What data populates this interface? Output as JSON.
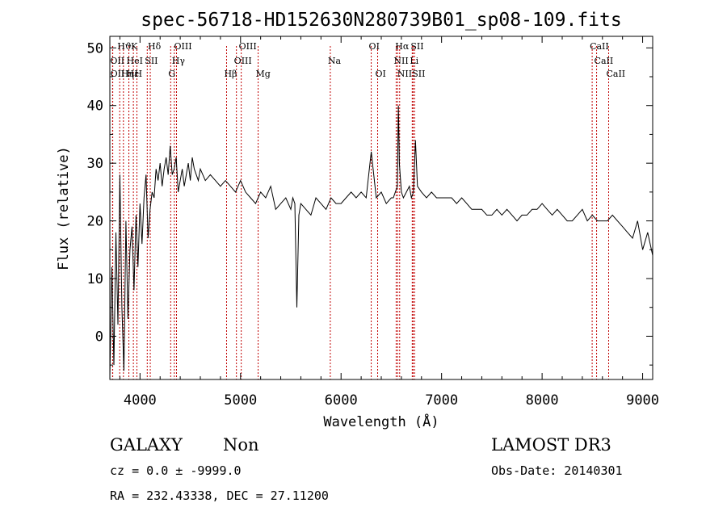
{
  "chart_data": {
    "type": "line",
    "title": "spec-56718-HD152630N280739B01_sp08-109.fits",
    "xlabel": "Wavelength (Å)",
    "ylabel": "Flux (relative)",
    "xlim": [
      3700,
      9100
    ],
    "ylim": [
      -7.5,
      52
    ],
    "xticks": [
      4000,
      5000,
      6000,
      7000,
      8000,
      9000
    ],
    "yticks": [
      0,
      10,
      20,
      30,
      40,
      50
    ],
    "grid": false,
    "line_color": "#000000",
    "marker_color": "#c00000",
    "spectral_lines": [
      {
        "name": "Hϑ",
        "wavelength": 3798,
        "row": 0
      },
      {
        "name": "OII",
        "wavelength": 3727,
        "row": 1
      },
      {
        "name": "OII",
        "wavelength": 3729,
        "row": 2
      },
      {
        "name": "Hε",
        "wavelength": 3889,
        "row": 2
      },
      {
        "name": "HeI",
        "wavelength": 3889,
        "row": 1
      },
      {
        "name": "Hη",
        "wavelength": 3835,
        "row": 2
      },
      {
        "name": "K",
        "wavelength": 3934,
        "row": 0
      },
      {
        "name": "H",
        "wavelength": 3969,
        "row": 2
      },
      {
        "name": "SII",
        "wavelength": 4072,
        "row": 1
      },
      {
        "name": "Hδ",
        "wavelength": 4102,
        "row": 0
      },
      {
        "name": "G",
        "wavelength": 4305,
        "row": 2
      },
      {
        "name": "OIII",
        "wavelength": 4363,
        "row": 0
      },
      {
        "name": "Hγ",
        "wavelength": 4341,
        "row": 1
      },
      {
        "name": "Hβ",
        "wavelength": 4861,
        "row": 2
      },
      {
        "name": "OIII",
        "wavelength": 4959,
        "row": 1
      },
      {
        "name": "OIII",
        "wavelength": 5007,
        "row": 0
      },
      {
        "name": "Mg",
        "wavelength": 5175,
        "row": 2
      },
      {
        "name": "Na",
        "wavelength": 5893,
        "row": 1
      },
      {
        "name": "OI",
        "wavelength": 6300,
        "row": 0
      },
      {
        "name": "OI",
        "wavelength": 6364,
        "row": 2
      },
      {
        "name": "NII",
        "wavelength": 6548,
        "row": 1
      },
      {
        "name": "NII",
        "wavelength": 6583,
        "row": 2
      },
      {
        "name": "Hα",
        "wavelength": 6563,
        "row": 0
      },
      {
        "name": "SII",
        "wavelength": 6716,
        "row": 0
      },
      {
        "name": "Li",
        "wavelength": 6708,
        "row": 1
      },
      {
        "name": "SII",
        "wavelength": 6731,
        "row": 2
      },
      {
        "name": "CaII",
        "wavelength": 8498,
        "row": 0
      },
      {
        "name": "CaII",
        "wavelength": 8542,
        "row": 1
      },
      {
        "name": "CaII",
        "wavelength": 8662,
        "row": 2
      }
    ],
    "spectrum": {
      "x": [
        3700,
        3720,
        3740,
        3760,
        3780,
        3800,
        3820,
        3840,
        3860,
        3880,
        3900,
        3920,
        3940,
        3960,
        3980,
        4000,
        4020,
        4040,
        4060,
        4080,
        4100,
        4120,
        4140,
        4160,
        4180,
        4200,
        4220,
        4240,
        4260,
        4280,
        4300,
        4320,
        4340,
        4360,
        4380,
        4400,
        4420,
        4440,
        4460,
        4480,
        4500,
        4520,
        4540,
        4560,
        4580,
        4600,
        4650,
        4700,
        4750,
        4800,
        4850,
        4900,
        4950,
        5000,
        5050,
        5100,
        5150,
        5200,
        5250,
        5300,
        5350,
        5400,
        5450,
        5500,
        5520,
        5540,
        5560,
        5580,
        5600,
        5650,
        5700,
        5750,
        5800,
        5850,
        5900,
        5950,
        6000,
        6050,
        6100,
        6150,
        6200,
        6250,
        6300,
        6350,
        6400,
        6450,
        6500,
        6520,
        6540,
        6560,
        6570,
        6580,
        6600,
        6620,
        6650,
        6680,
        6700,
        6720,
        6740,
        6760,
        6800,
        6850,
        6900,
        6950,
        7000,
        7050,
        7100,
        7150,
        7200,
        7250,
        7300,
        7350,
        7400,
        7450,
        7500,
        7550,
        7600,
        7650,
        7700,
        7750,
        7800,
        7850,
        7900,
        7950,
        8000,
        8050,
        8100,
        8150,
        8200,
        8250,
        8300,
        8350,
        8400,
        8450,
        8500,
        8550,
        8600,
        8650,
        8700,
        8750,
        8800,
        8850,
        8900,
        8950,
        9000,
        9050,
        9100
      ],
      "y": [
        -7,
        12,
        -5,
        18,
        2,
        28,
        5,
        -6,
        20,
        3,
        15,
        19,
        8,
        21,
        12,
        23,
        16,
        24,
        28,
        17,
        22,
        25,
        24,
        29,
        27,
        30,
        26,
        29,
        31,
        28,
        33,
        28,
        29,
        31,
        25,
        27,
        29,
        26,
        28,
        30,
        27,
        31,
        29,
        28,
        27,
        29,
        27,
        28,
        27,
        26,
        27,
        26,
        25,
        27,
        25,
        24,
        23,
        25,
        24,
        26,
        22,
        23,
        24,
        22,
        24,
        23,
        5,
        21,
        23,
        22,
        21,
        24,
        23,
        22,
        24,
        23,
        23,
        24,
        25,
        24,
        25,
        24,
        32,
        24,
        25,
        23,
        24,
        24,
        25,
        26,
        40,
        30,
        25,
        24,
        25,
        26,
        24,
        25,
        34,
        26,
        25,
        24,
        25,
        24,
        24,
        24,
        24,
        23,
        24,
        23,
        22,
        22,
        22,
        21,
        21,
        22,
        21,
        22,
        21,
        20,
        21,
        21,
        22,
        22,
        23,
        22,
        21,
        22,
        21,
        20,
        20,
        21,
        22,
        20,
        21,
        20,
        20,
        20,
        21,
        20,
        19,
        18,
        17,
        20,
        15,
        18,
        14
      ]
    }
  },
  "info": {
    "object_class": "GALAXY",
    "subclass": "Non",
    "survey": "LAMOST DR3",
    "redshift": "cz = 0.0 ± -9999.0",
    "obs_date": "Obs-Date: 20140301",
    "coords": "RA = 232.43338, DEC =  27.11200"
  }
}
